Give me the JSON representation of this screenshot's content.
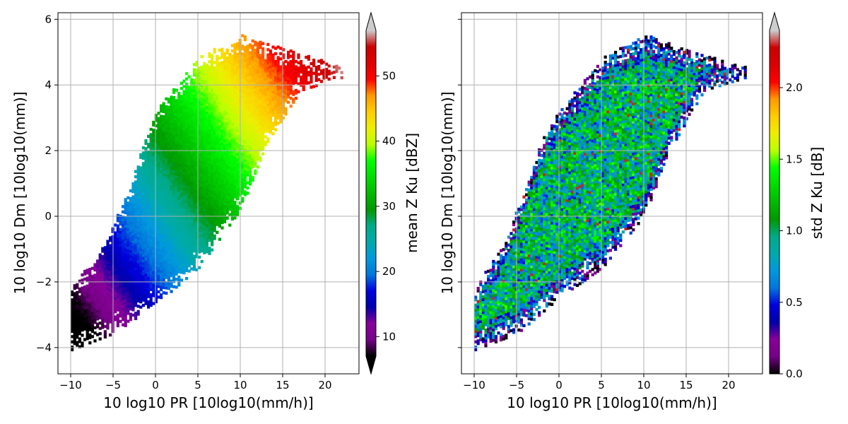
{
  "chart_data": [
    {
      "type": "heatmap",
      "xlabel": "10 log10 PR [10log10(mm/h)]",
      "ylabel": "10 log10 Dm [10log10(mm)]",
      "xlim": [
        -11.5,
        24
      ],
      "ylim": [
        -4.8,
        6.2
      ],
      "xticks": [
        -10,
        -5,
        0,
        5,
        10,
        15,
        20
      ],
      "yticks": [
        -4,
        -2,
        0,
        2,
        4,
        6
      ],
      "grid": true,
      "colorbar": {
        "label": "mean Z Ku [dBZ]",
        "range": [
          7,
          57
        ],
        "ticks": [
          10,
          20,
          30,
          40,
          50
        ],
        "extend": "both",
        "colormap": "nipy_spectral"
      },
      "data_region": {
        "x_min": -10,
        "x_max": 22,
        "lower_edge": [
          [
            -10,
            -4.1
          ],
          [
            -5,
            -3.6
          ],
          [
            0,
            -2.7
          ],
          [
            5,
            -1.6
          ],
          [
            10,
            0.2
          ],
          [
            13,
            2.2
          ],
          [
            17,
            3.8
          ],
          [
            22,
            4.2
          ]
        ],
        "upper_edge": [
          [
            -10,
            -2.2
          ],
          [
            -7,
            -1.2
          ],
          [
            -5,
            -0.2
          ],
          [
            -3,
            0.9
          ],
          [
            -2,
            1.8
          ],
          [
            0,
            3.2
          ],
          [
            5,
            4.8
          ],
          [
            10,
            5.5
          ],
          [
            22,
            4.5
          ]
        ]
      },
      "value_model": {
        "intercept": 23.5,
        "x_slope": 1.0,
        "y_slope": 2.5
      }
    },
    {
      "type": "heatmap",
      "xlabel": "10 log10 PR [10log10(mm/h)]",
      "ylabel": "10 log10 Dm [10log10(mm)]",
      "xlim": [
        -11.5,
        24
      ],
      "ylim": [
        -4.8,
        6.2
      ],
      "xticks": [
        -10,
        -5,
        0,
        5,
        10,
        15,
        20
      ],
      "yticks": [
        -4,
        -2,
        0,
        2,
        4,
        6
      ],
      "y_tick_labels_shown": false,
      "grid": true,
      "colorbar": {
        "label": "std Z Ku [dB]",
        "range": [
          0,
          2.4
        ],
        "ticks": [
          0.0,
          0.5,
          1.0,
          1.5,
          2.0
        ],
        "tick_labels": [
          "0.0",
          "0.5",
          "1.0",
          "1.5",
          "2.0"
        ],
        "extend": "max",
        "colormap": "nipy_spectral"
      },
      "data_region": {
        "x_min": -10,
        "x_max": 22,
        "lower_edge": [
          [
            -10,
            -4.1
          ],
          [
            -5,
            -3.6
          ],
          [
            0,
            -2.5
          ],
          [
            5,
            -1.6
          ],
          [
            10,
            0.0
          ],
          [
            13,
            2.0
          ],
          [
            17,
            3.8
          ],
          [
            22,
            4.2
          ]
        ],
        "upper_edge": [
          [
            -10,
            -2.2
          ],
          [
            -7,
            -1.0
          ],
          [
            -5,
            0.2
          ],
          [
            -3,
            1.6
          ],
          [
            -2,
            2.4
          ],
          [
            0,
            3.2
          ],
          [
            5,
            4.8
          ],
          [
            10,
            5.5
          ],
          [
            22,
            4.5
          ]
        ]
      },
      "value_summary": {
        "edge_mean": 0.2,
        "interior_mean": 1.0,
        "interior_spread": 0.5
      }
    }
  ]
}
